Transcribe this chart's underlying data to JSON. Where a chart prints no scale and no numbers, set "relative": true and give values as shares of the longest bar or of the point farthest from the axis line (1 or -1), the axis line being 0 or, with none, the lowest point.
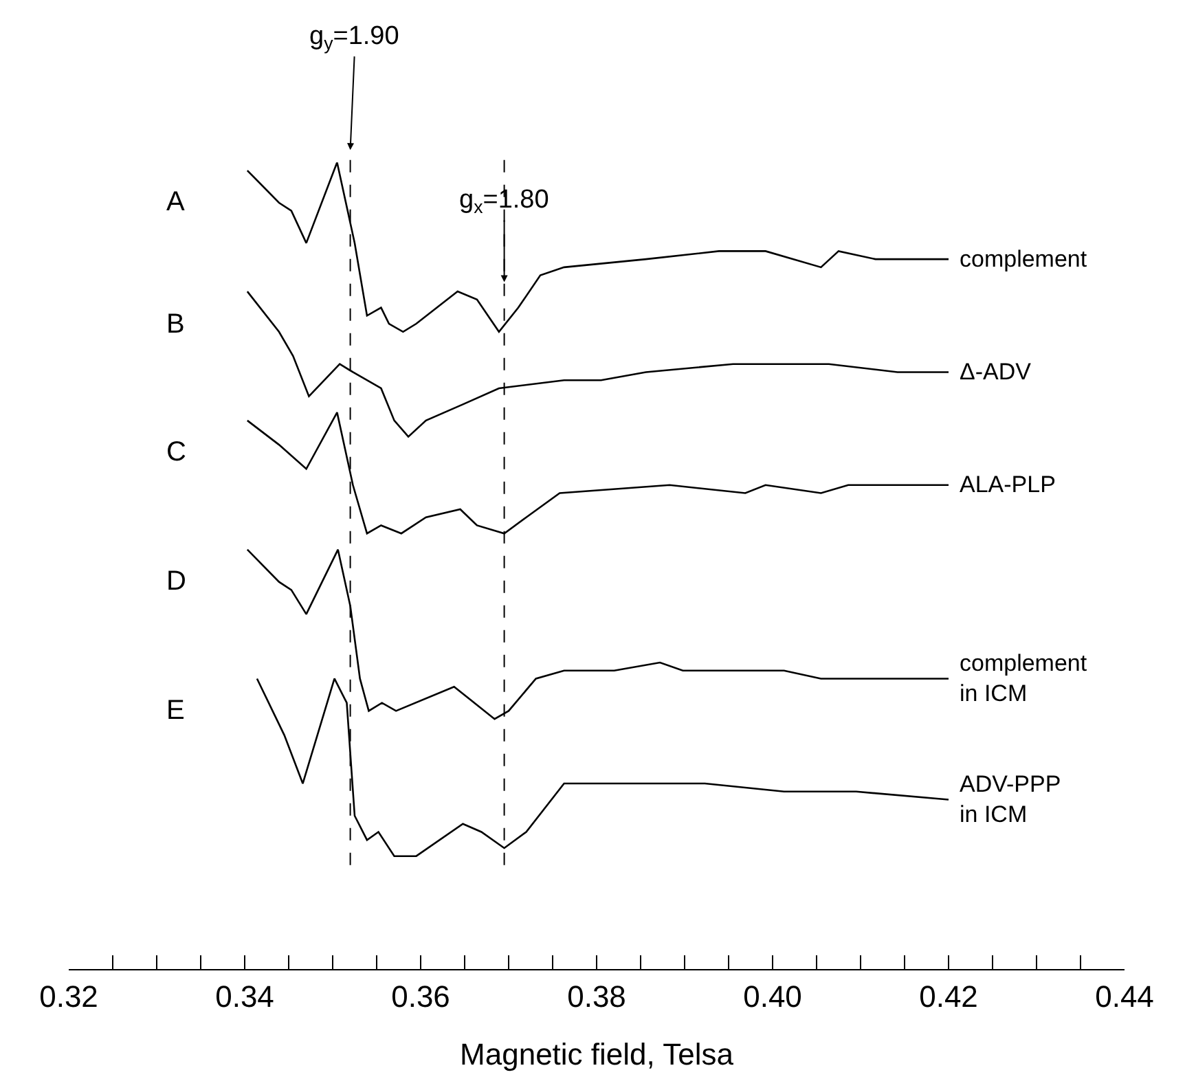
{
  "chart_data": {
    "type": "line",
    "relative": true,
    "xlabel": "Magnetic field, Telsa",
    "xlim": [
      0.32,
      0.44
    ],
    "xticks": [
      0.32,
      {
        "value": 0.325,
        "label": null
      },
      {
        "value": 0.33,
        "label": null
      },
      {
        "value": 0.335,
        "label": null
      },
      0.34,
      {
        "value": 0.345,
        "label": null
      },
      {
        "value": 0.35,
        "label": null
      },
      {
        "value": 0.355,
        "label": null
      },
      0.36,
      {
        "value": 0.365,
        "label": null
      },
      {
        "value": 0.37,
        "label": null
      },
      {
        "value": 0.375,
        "label": null
      },
      0.38,
      {
        "value": 0.385,
        "label": null
      },
      {
        "value": 0.39,
        "label": null
      },
      {
        "value": 0.395,
        "label": null
      },
      {
        "value": 0.4,
        "label": "0.40"
      },
      {
        "value": 0.405,
        "label": null
      },
      {
        "value": 0.41,
        "label": null
      },
      {
        "value": 0.415,
        "label": null
      },
      0.42,
      {
        "value": 0.425,
        "label": null
      },
      {
        "value": 0.43,
        "label": null
      },
      {
        "value": 0.435,
        "label": null
      },
      0.44
    ],
    "grid": false,
    "legend": false,
    "marker": "none",
    "line_style": "solid",
    "series": [
      {
        "name": "complement",
        "color": "#000000",
        "x": [
          0.3403,
          0.3439,
          0.3453,
          0.347,
          0.3505,
          0.3525,
          0.3539,
          0.3555,
          0.3564,
          0.358,
          0.3595,
          0.3642,
          0.3664,
          0.3689,
          0.3711,
          0.3736,
          0.3763,
          0.3856,
          0.3939,
          0.3992,
          0.4055,
          0.4075,
          0.4117,
          0.42
        ],
        "values": [
          0.99,
          0.95,
          0.94,
          0.9,
          1.0,
          0.9,
          0.81,
          0.82,
          0.8,
          0.79,
          0.8,
          0.84,
          0.83,
          0.79,
          0.82,
          0.86,
          0.87,
          0.88,
          0.89,
          0.89,
          0.87,
          0.89,
          0.88,
          0.88
        ]
      },
      {
        "name": "Δ-ADV",
        "color": "#000000",
        "x": [
          0.3403,
          0.3439,
          0.3455,
          0.3473,
          0.3508,
          0.3523,
          0.3555,
          0.357,
          0.3586,
          0.3606,
          0.3648,
          0.3689,
          0.3763,
          0.3805,
          0.3856,
          0.3955,
          0.4013,
          0.4064,
          0.4142,
          0.42
        ],
        "values": [
          0.84,
          0.79,
          0.76,
          0.71,
          0.75,
          0.74,
          0.72,
          0.68,
          0.66,
          0.68,
          0.7,
          0.72,
          0.73,
          0.73,
          0.74,
          0.75,
          0.75,
          0.75,
          0.74,
          0.74
        ]
      },
      {
        "name": "ALA-PLP",
        "color": "#000000",
        "x": [
          0.3403,
          0.3439,
          0.347,
          0.3505,
          0.3523,
          0.3539,
          0.3555,
          0.3578,
          0.3606,
          0.3645,
          0.3664,
          0.3695,
          0.372,
          0.3758,
          0.3883,
          0.3969,
          0.3992,
          0.4055,
          0.4086,
          0.42
        ],
        "values": [
          0.68,
          0.65,
          0.62,
          0.69,
          0.6,
          0.54,
          0.55,
          0.54,
          0.56,
          0.57,
          0.55,
          0.54,
          0.56,
          0.59,
          0.6,
          0.59,
          0.6,
          0.59,
          0.6,
          0.6
        ]
      },
      {
        "name": "complement\nin ICM",
        "color": "#000000",
        "x": [
          0.3403,
          0.3439,
          0.3453,
          0.347,
          0.3506,
          0.352,
          0.3531,
          0.3541,
          0.3556,
          0.3572,
          0.3638,
          0.3684,
          0.37,
          0.3731,
          0.3763,
          0.382,
          0.3872,
          0.3898,
          0.4013,
          0.4055,
          0.42
        ],
        "values": [
          0.52,
          0.48,
          0.47,
          0.44,
          0.52,
          0.45,
          0.36,
          0.32,
          0.33,
          0.32,
          0.35,
          0.31,
          0.32,
          0.36,
          0.37,
          0.37,
          0.38,
          0.37,
          0.37,
          0.36,
          0.36
        ]
      },
      {
        "name": "ADV-PPP\nin ICM",
        "color": "#000000",
        "x": [
          0.3414,
          0.3445,
          0.3466,
          0.3502,
          0.3516,
          0.3525,
          0.3539,
          0.3552,
          0.357,
          0.3595,
          0.3648,
          0.3669,
          0.3695,
          0.372,
          0.3763,
          0.3773,
          0.382,
          0.3883,
          0.3923,
          0.4013,
          0.4095,
          0.42
        ],
        "values": [
          0.36,
          0.29,
          0.23,
          0.36,
          0.33,
          0.19,
          0.16,
          0.17,
          0.14,
          0.14,
          0.18,
          0.17,
          0.15,
          0.17,
          0.23,
          0.23,
          0.23,
          0.23,
          0.23,
          0.22,
          0.22,
          0.21
        ]
      }
    ],
    "ref_lines": [
      {
        "axis": "x",
        "value": 0.352,
        "line_style": "dashed",
        "color": "#000000"
      },
      {
        "axis": "x",
        "value": 0.3695,
        "line_style": "dashed",
        "color": "#000000"
      }
    ],
    "annotations": [
      "g$_{y}$=1.90",
      "g$_{x}$=1.80",
      "A",
      "B",
      "C",
      "D",
      "E"
    ]
  }
}
